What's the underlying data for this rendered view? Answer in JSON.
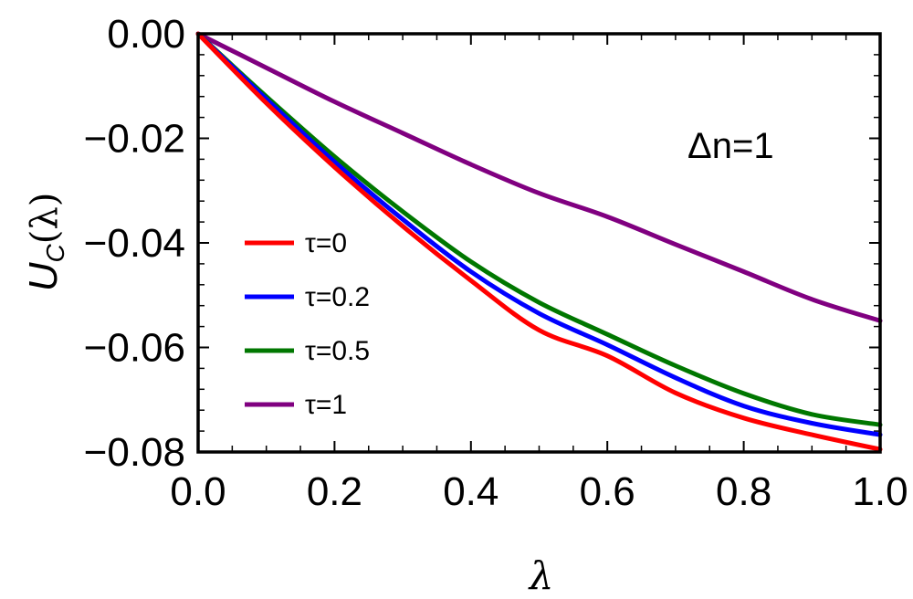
{
  "chart_data": {
    "type": "line",
    "title": "",
    "xlabel": "λ",
    "ylabel_main": "U",
    "ylabel_sub": "C",
    "ylabel_arg": "(λ)",
    "xlim": [
      0,
      1
    ],
    "ylim": [
      -0.08,
      0
    ],
    "x_ticks": [
      0,
      0.2,
      0.4,
      0.6,
      0.8,
      1.0
    ],
    "x_tick_labels": [
      "0.0",
      "0.2",
      "0.4",
      "0.6",
      "0.8",
      "1.0"
    ],
    "y_ticks": [
      0,
      -0.02,
      -0.04,
      -0.06,
      -0.08
    ],
    "y_tick_labels": [
      "0.00",
      "−0.02",
      "−0.04",
      "−0.06",
      "−0.08"
    ],
    "annotation": "Δn=1",
    "legend_position": "center-left",
    "x": [
      0,
      0.1,
      0.2,
      0.3,
      0.4,
      0.5,
      0.6,
      0.7,
      0.8,
      0.9,
      1.0
    ],
    "series": [
      {
        "name": "τ=0",
        "color": "#ff0000",
        "values": [
          0,
          -0.01325,
          -0.0255,
          -0.0368,
          -0.0472,
          -0.0567,
          -0.0616,
          -0.0687,
          -0.0735,
          -0.0767,
          -0.0795
        ]
      },
      {
        "name": "τ=0.2",
        "color": "#0000ff",
        "values": [
          0,
          -0.0125,
          -0.0245,
          -0.0355,
          -0.0455,
          -0.0535,
          -0.0595,
          -0.0658,
          -0.0712,
          -0.0745,
          -0.0767
        ]
      },
      {
        "name": "τ=0.5",
        "color": "#007700",
        "values": [
          0,
          -0.012,
          -0.0235,
          -0.034,
          -0.0436,
          -0.0514,
          -0.0575,
          -0.0635,
          -0.0688,
          -0.0728,
          -0.0748
        ]
      },
      {
        "name": "τ=1",
        "color": "#800080",
        "values": [
          0,
          -0.0065,
          -0.013,
          -0.019,
          -0.025,
          -0.0305,
          -0.035,
          -0.0403,
          -0.0455,
          -0.0508,
          -0.0549
        ]
      }
    ]
  }
}
